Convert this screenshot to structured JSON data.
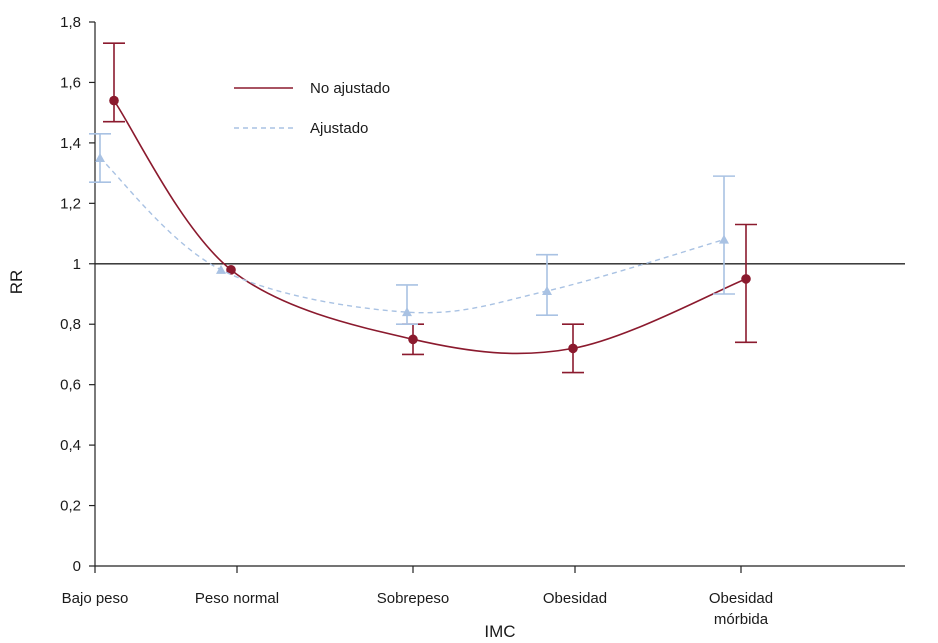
{
  "chart_data": {
    "type": "line",
    "title": "",
    "xlabel": "IMC",
    "ylabel": "RR",
    "ylim": [
      0,
      1.8
    ],
    "yticks": [
      "0",
      "0,2",
      "0,4",
      "0,6",
      "0,8",
      "1",
      "1,2",
      "1,4",
      "1,6",
      "1,8"
    ],
    "categories": [
      [
        "Bajo peso"
      ],
      [
        "Peso normal"
      ],
      [
        "Sobrepeso"
      ],
      [
        "Obesidad"
      ],
      [
        "Obesidad",
        "mórbida"
      ]
    ],
    "reference_line": 1,
    "grid": false,
    "legend_position": "top-left",
    "series": [
      {
        "name": "No ajustado",
        "style": "solid",
        "marker": "circle",
        "color": "#8b1a2e",
        "values": [
          1.54,
          0.98,
          0.75,
          0.72,
          0.95
        ],
        "ci_low": [
          1.47,
          null,
          0.7,
          0.64,
          0.74
        ],
        "ci_high": [
          1.73,
          null,
          0.8,
          0.8,
          1.13
        ]
      },
      {
        "name": "Ajustado",
        "style": "dashed",
        "marker": "triangle",
        "color": "#a9c2e3",
        "values": [
          1.35,
          0.98,
          0.84,
          0.91,
          1.08
        ],
        "ci_low": [
          1.27,
          null,
          0.8,
          0.83,
          0.9
        ],
        "ci_high": [
          1.43,
          null,
          0.93,
          1.03,
          1.29
        ]
      }
    ]
  }
}
